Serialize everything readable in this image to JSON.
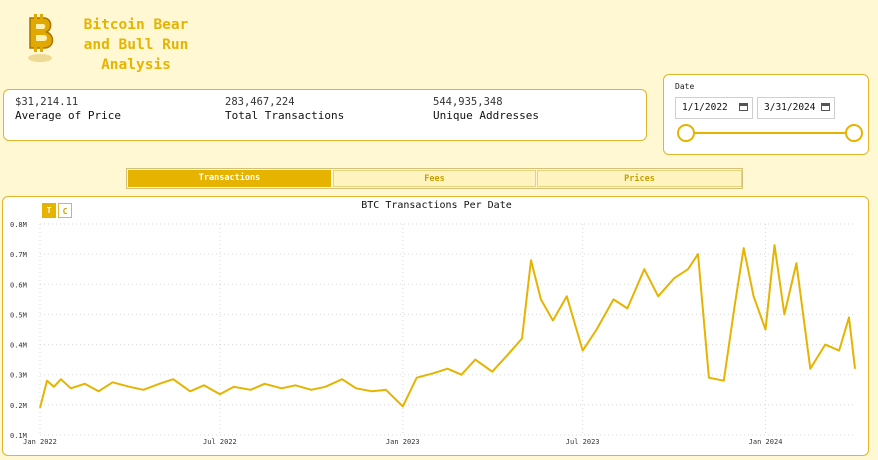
{
  "header": {
    "title": "Bitcoin Bear\nand Bull Run\nAnalysis",
    "logo_icon": "bitcoin-logo-icon"
  },
  "kpis": [
    {
      "value": "$31,214.11",
      "label": "Average of Price"
    },
    {
      "value": "283,467,224",
      "label": "Total Transactions"
    },
    {
      "value": "544,935,348",
      "label": "Unique Addresses"
    }
  ],
  "date_filter": {
    "label": "Date",
    "start": "1/1/2022",
    "end": "3/31/2024",
    "calendar_icon": "calendar-icon"
  },
  "tabs": [
    {
      "label": "Transactions",
      "active": true
    },
    {
      "label": "Fees",
      "active": false
    },
    {
      "label": "Prices",
      "active": false
    }
  ],
  "chart_toggles": [
    "T",
    "C"
  ],
  "colors": {
    "accent": "#e6b400",
    "background": "#fff8d2",
    "card_border": "#e2b52a"
  },
  "chart_data": {
    "type": "line",
    "title": "BTC Transactions Per Date",
    "xlabel": "",
    "ylabel": "",
    "x_ticks": [
      "Jan 2022",
      "Jul 2022",
      "Jan 2023",
      "Jul 2023",
      "Jan 2024"
    ],
    "y_ticks": [
      "0.1M",
      "0.2M",
      "0.3M",
      "0.4M",
      "0.5M",
      "0.6M",
      "0.7M",
      "0.8M"
    ],
    "ylim": [
      100000,
      800000
    ],
    "xlim": [
      "2022-01-01",
      "2024-03-31"
    ],
    "grid": true,
    "series": [
      {
        "values": [
          {
            "x": "2022-01-01",
            "y": 190000
          },
          {
            "x": "2022-01-08",
            "y": 280000
          },
          {
            "x": "2022-01-15",
            "y": 260000
          },
          {
            "x": "2022-01-22",
            "y": 285000
          },
          {
            "x": "2022-02-01",
            "y": 255000
          },
          {
            "x": "2022-02-15",
            "y": 270000
          },
          {
            "x": "2022-03-01",
            "y": 245000
          },
          {
            "x": "2022-03-15",
            "y": 275000
          },
          {
            "x": "2022-04-01",
            "y": 260000
          },
          {
            "x": "2022-04-15",
            "y": 250000
          },
          {
            "x": "2022-05-01",
            "y": 270000
          },
          {
            "x": "2022-05-15",
            "y": 285000
          },
          {
            "x": "2022-06-01",
            "y": 245000
          },
          {
            "x": "2022-06-15",
            "y": 265000
          },
          {
            "x": "2022-07-01",
            "y": 235000
          },
          {
            "x": "2022-07-15",
            "y": 260000
          },
          {
            "x": "2022-08-01",
            "y": 250000
          },
          {
            "x": "2022-08-15",
            "y": 270000
          },
          {
            "x": "2022-09-01",
            "y": 255000
          },
          {
            "x": "2022-09-15",
            "y": 265000
          },
          {
            "x": "2022-10-01",
            "y": 250000
          },
          {
            "x": "2022-10-15",
            "y": 260000
          },
          {
            "x": "2022-11-01",
            "y": 285000
          },
          {
            "x": "2022-11-15",
            "y": 255000
          },
          {
            "x": "2022-12-01",
            "y": 245000
          },
          {
            "x": "2022-12-15",
            "y": 250000
          },
          {
            "x": "2023-01-01",
            "y": 195000
          },
          {
            "x": "2023-01-15",
            "y": 290000
          },
          {
            "x": "2023-02-01",
            "y": 305000
          },
          {
            "x": "2023-02-15",
            "y": 320000
          },
          {
            "x": "2023-03-01",
            "y": 300000
          },
          {
            "x": "2023-03-15",
            "y": 350000
          },
          {
            "x": "2023-04-01",
            "y": 310000
          },
          {
            "x": "2023-04-15",
            "y": 360000
          },
          {
            "x": "2023-05-01",
            "y": 420000
          },
          {
            "x": "2023-05-10",
            "y": 680000
          },
          {
            "x": "2023-05-20",
            "y": 550000
          },
          {
            "x": "2023-06-01",
            "y": 480000
          },
          {
            "x": "2023-06-15",
            "y": 560000
          },
          {
            "x": "2023-07-01",
            "y": 380000
          },
          {
            "x": "2023-07-15",
            "y": 450000
          },
          {
            "x": "2023-08-01",
            "y": 550000
          },
          {
            "x": "2023-08-15",
            "y": 520000
          },
          {
            "x": "2023-09-01",
            "y": 650000
          },
          {
            "x": "2023-09-15",
            "y": 560000
          },
          {
            "x": "2023-10-01",
            "y": 620000
          },
          {
            "x": "2023-10-15",
            "y": 650000
          },
          {
            "x": "2023-10-25",
            "y": 700000
          },
          {
            "x": "2023-11-05",
            "y": 290000
          },
          {
            "x": "2023-11-20",
            "y": 280000
          },
          {
            "x": "2023-12-01",
            "y": 530000
          },
          {
            "x": "2023-12-10",
            "y": 720000
          },
          {
            "x": "2023-12-20",
            "y": 560000
          },
          {
            "x": "2024-01-01",
            "y": 450000
          },
          {
            "x": "2024-01-10",
            "y": 730000
          },
          {
            "x": "2024-01-20",
            "y": 500000
          },
          {
            "x": "2024-02-01",
            "y": 670000
          },
          {
            "x": "2024-02-15",
            "y": 320000
          },
          {
            "x": "2024-03-01",
            "y": 400000
          },
          {
            "x": "2024-03-15",
            "y": 380000
          },
          {
            "x": "2024-03-25",
            "y": 490000
          },
          {
            "x": "2024-03-31",
            "y": 320000
          }
        ]
      }
    ]
  }
}
